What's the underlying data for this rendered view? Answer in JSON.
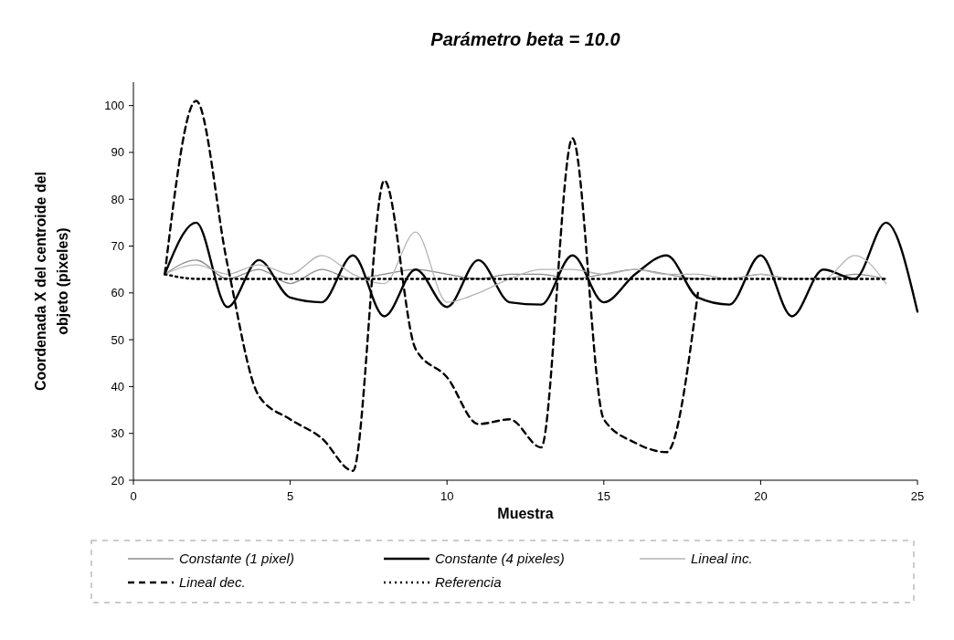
{
  "chart_data": {
    "type": "line",
    "title": "Parámetro beta = 10.0",
    "xlabel": "Muestra",
    "ylabel": "Coordenada X del centroide del objeto (pixeles)",
    "x": [
      1,
      2,
      3,
      4,
      5,
      6,
      7,
      8,
      9,
      10,
      11,
      12,
      13,
      14,
      15,
      16,
      17,
      18,
      19,
      20,
      21,
      22,
      23,
      24,
      25
    ],
    "series": [
      {
        "name": "Constante (1 pixel)",
        "color": "#8c8c8c",
        "line_style": "solid",
        "values": [
          64,
          67,
          63,
          65,
          62,
          65,
          63,
          64,
          65,
          64,
          63,
          64,
          64,
          63,
          64,
          65,
          64,
          63,
          63,
          64,
          63,
          63,
          64,
          63,
          null
        ]
      },
      {
        "name": "Constante (4 pixeles)",
        "color": "#000000",
        "line_style": "solid",
        "values": [
          64,
          75,
          57,
          67,
          59,
          58,
          68,
          55,
          65,
          57,
          67,
          58,
          57.5,
          68,
          58,
          64,
          68,
          59,
          57.5,
          68,
          55,
          65,
          63,
          75,
          56
        ]
      },
      {
        "name": "Lineal inc.",
        "color": "#b4b4b4",
        "line_style": "solid",
        "values": [
          64,
          66,
          64,
          66,
          64,
          68,
          64,
          62,
          73,
          58,
          60,
          63,
          65,
          65,
          64,
          65,
          64,
          64,
          63,
          64,
          63,
          63,
          68,
          62,
          null
        ]
      },
      {
        "name": "Lineal dec.",
        "color": "#000000",
        "line_style": "dashed",
        "values": [
          64,
          101,
          66,
          38,
          33,
          29,
          22,
          84,
          48,
          42,
          32,
          33,
          27,
          93,
          33,
          28,
          26,
          60,
          null,
          null,
          null,
          null,
          null,
          null,
          null
        ]
      },
      {
        "name": "Referencia",
        "color": "#000000",
        "line_style": "dotted",
        "values": [
          64,
          63,
          63,
          63,
          63,
          63,
          63,
          63,
          63,
          63,
          63,
          63,
          63,
          63,
          63,
          63,
          63,
          63,
          63,
          63,
          63,
          63,
          63,
          63,
          null
        ]
      }
    ],
    "xlim": [
      0,
      25
    ],
    "xticks": [
      0,
      5,
      10,
      15,
      20,
      25
    ],
    "ylim": [
      20,
      105
    ],
    "yticks": [
      20,
      30,
      40,
      50,
      60,
      70,
      80,
      90,
      100
    ],
    "legend": "bottom"
  }
}
